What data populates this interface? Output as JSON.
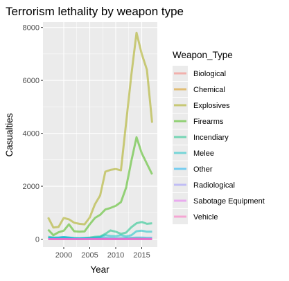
{
  "chart_data": {
    "type": "line",
    "title": "Terrorism lethality by weapon type",
    "xlabel": "Year",
    "ylabel": "Casualties",
    "xlim": [
      1996,
      2018
    ],
    "ylim": [
      -300,
      8200
    ],
    "x_ticks": [
      2000,
      2005,
      2010,
      2015
    ],
    "y_ticks": [
      0,
      2000,
      4000,
      6000,
      8000
    ],
    "x_tick_labels": [
      "2000",
      "2005",
      "2010",
      "2015"
    ],
    "y_tick_labels": [
      "0",
      "2000",
      "4000",
      "6000",
      "8000"
    ],
    "grid": true,
    "legend_title": "Weapon_Type",
    "legend_position": "right",
    "x": [
      1997,
      1998,
      1999,
      2000,
      2001,
      2002,
      2003,
      2004,
      2005,
      2006,
      2007,
      2008,
      2009,
      2010,
      2011,
      2012,
      2013,
      2014,
      2015,
      2016,
      2017
    ],
    "series": [
      {
        "name": "Biological",
        "color": "#F8766D",
        "values": [
          0,
          0,
          0,
          0,
          0,
          0,
          0,
          0,
          0,
          0,
          0,
          0,
          0,
          0,
          0,
          0,
          0,
          0,
          0,
          0,
          0
        ]
      },
      {
        "name": "Chemical",
        "color": "#D89000",
        "values": [
          20,
          10,
          10,
          15,
          10,
          5,
          5,
          10,
          20,
          15,
          10,
          10,
          5,
          5,
          10,
          15,
          20,
          25,
          20,
          15,
          10
        ]
      },
      {
        "name": "Explosives",
        "color": "#A3A500",
        "values": [
          820,
          440,
          460,
          800,
          750,
          620,
          580,
          560,
          820,
          1320,
          1650,
          2550,
          2620,
          2650,
          2600,
          4400,
          6200,
          7800,
          7000,
          6400,
          4400
        ]
      },
      {
        "name": "Firearms",
        "color": "#39B600",
        "values": [
          360,
          150,
          260,
          320,
          560,
          300,
          280,
          290,
          560,
          800,
          920,
          1120,
          1180,
          1260,
          1400,
          1950,
          2950,
          3850,
          3250,
          2850,
          2450
        ]
      },
      {
        "name": "Incendiary",
        "color": "#00BF7D",
        "values": [
          90,
          60,
          60,
          80,
          60,
          40,
          30,
          40,
          60,
          90,
          100,
          200,
          330,
          280,
          200,
          250,
          450,
          600,
          650,
          580,
          600
        ]
      },
      {
        "name": "Melee",
        "color": "#00BFC4",
        "values": [
          40,
          30,
          30,
          40,
          30,
          20,
          20,
          30,
          40,
          60,
          80,
          150,
          120,
          110,
          150,
          100,
          150,
          300,
          320,
          280,
          280
        ]
      },
      {
        "name": "Other",
        "color": "#00B0F6",
        "values": [
          60,
          50,
          60,
          80,
          60,
          40,
          30,
          40,
          30,
          40,
          40,
          50,
          40,
          30,
          30,
          40,
          50,
          60,
          60,
          50,
          50
        ]
      },
      {
        "name": "Radiological",
        "color": "#9590FF",
        "values": [
          0,
          0,
          0,
          0,
          0,
          0,
          0,
          0,
          0,
          0,
          0,
          0,
          0,
          0,
          0,
          0,
          0,
          0,
          0,
          0,
          0
        ]
      },
      {
        "name": "Sabotage Equipment",
        "color": "#E76BF3",
        "values": [
          0,
          0,
          0,
          0,
          0,
          0,
          0,
          0,
          0,
          0,
          0,
          0,
          0,
          0,
          0,
          0,
          0,
          0,
          0,
          0,
          0
        ]
      },
      {
        "name": "Vehicle",
        "color": "#FF62BC",
        "values": [
          0,
          0,
          0,
          0,
          0,
          0,
          0,
          0,
          5,
          5,
          5,
          5,
          5,
          5,
          5,
          5,
          5,
          5,
          5,
          5,
          5
        ]
      }
    ]
  }
}
